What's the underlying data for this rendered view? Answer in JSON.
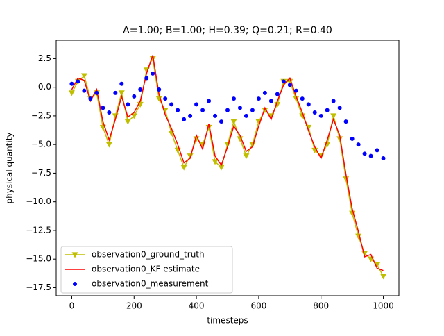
{
  "chart_data": {
    "type": "line",
    "title": "A=1.00; B=1.00; H=0.39; Q=0.21; R=0.40",
    "x_label": "timesteps",
    "y_label": "physical quantity",
    "x": [
      0,
      20,
      40,
      60,
      80,
      100,
      120,
      140,
      160,
      180,
      200,
      220,
      240,
      260,
      280,
      300,
      320,
      340,
      360,
      380,
      400,
      420,
      440,
      460,
      480,
      500,
      520,
      540,
      560,
      580,
      600,
      620,
      640,
      660,
      680,
      700,
      720,
      740,
      760,
      780,
      800,
      820,
      840,
      860,
      880,
      900,
      920,
      940,
      960,
      980,
      1000
    ],
    "series": [
      {
        "name": "observation0_ground_truth",
        "color": "#bfbf00",
        "kind": "line-triangle",
        "values": [
          -0.5,
          0.5,
          1.0,
          -1.0,
          -0.5,
          -3.5,
          -5.0,
          -2.5,
          -0.5,
          -3.0,
          -2.5,
          -1.5,
          1.5,
          2.5,
          -1.0,
          -2.0,
          -4.0,
          -5.5,
          -7.0,
          -6.0,
          -4.5,
          -5.0,
          -3.5,
          -6.5,
          -7.0,
          -5.0,
          -3.0,
          -4.5,
          -6.0,
          -5.0,
          -3.0,
          -2.0,
          -2.5,
          -1.5,
          0.5,
          0.5,
          -1.0,
          -2.5,
          -3.5,
          -5.5,
          -6.0,
          -5.0,
          -2.5,
          -4.5,
          -8.0,
          -11.0,
          -13.0,
          -14.5,
          -15.0,
          -15.5,
          -16.5
        ]
      },
      {
        "name": "observation0_KF estimate",
        "color": "#ff0000",
        "kind": "line",
        "values": [
          -0.2,
          0.8,
          0.6,
          -1.2,
          -0.2,
          -3.0,
          -4.6,
          -2.8,
          -0.8,
          -2.6,
          -2.2,
          -1.2,
          1.2,
          2.8,
          -0.6,
          -2.4,
          -3.6,
          -5.0,
          -6.6,
          -6.2,
          -4.2,
          -5.4,
          -3.2,
          -6.0,
          -6.8,
          -5.2,
          -3.4,
          -4.2,
          -5.6,
          -5.2,
          -3.4,
          -1.8,
          -2.8,
          -1.2,
          0.2,
          0.8,
          -0.8,
          -2.2,
          -3.8,
          -5.2,
          -6.2,
          -4.6,
          -2.8,
          -4.2,
          -7.6,
          -10.6,
          -12.6,
          -14.8,
          -14.6,
          -15.8,
          -16.0
        ]
      },
      {
        "name": "observation0_measurement",
        "color": "#0000ff",
        "kind": "scatter",
        "values": [
          0.3,
          0.5,
          -0.3,
          -1.0,
          -0.5,
          -1.8,
          -2.2,
          -0.5,
          0.3,
          -1.5,
          -0.8,
          -0.2,
          0.8,
          1.2,
          -0.2,
          -1.0,
          -1.5,
          -2.0,
          -2.8,
          -2.5,
          -1.5,
          -2.0,
          -1.2,
          -2.5,
          -3.0,
          -2.0,
          -1.0,
          -1.8,
          -2.5,
          -2.0,
          -1.0,
          -0.5,
          -1.2,
          -0.6,
          0.5,
          0.2,
          -0.3,
          -1.0,
          -1.5,
          -2.2,
          -2.5,
          -2.0,
          -1.2,
          -1.8,
          -3.0,
          -4.5,
          -5.0,
          -5.8,
          -6.0,
          -5.5,
          -6.2
        ]
      }
    ],
    "xlim": [
      -50,
      1050
    ],
    "ylim": [
      -18.2,
      4.1
    ],
    "xticks": [
      0,
      200,
      400,
      600,
      800,
      1000
    ],
    "yticks": [
      2.5,
      {
        "value": 0,
        "label": "0.0"
      },
      {
        "value": -2.5,
        "label": "−2.5"
      },
      {
        "value": -5,
        "label": "−5.0"
      },
      {
        "value": -7.5,
        "label": "−7.5"
      },
      {
        "value": -10,
        "label": "−10.0"
      },
      {
        "value": -12.5,
        "label": "−12.5"
      },
      {
        "value": -15,
        "label": "−15.0"
      },
      {
        "value": -17.5,
        "label": "−17.5"
      }
    ],
    "legend": "lower left"
  }
}
